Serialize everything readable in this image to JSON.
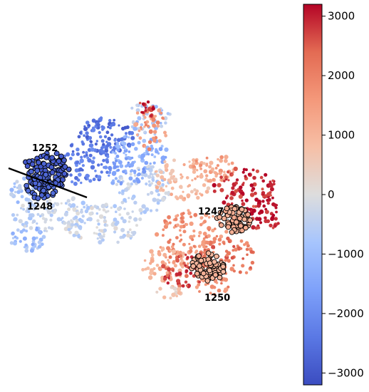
{
  "chart_data": {
    "type": "scatter",
    "title": "",
    "xlabel": "",
    "ylabel": "",
    "axes_visible": false,
    "colormap": "coolwarm",
    "colorbar": {
      "location": "right",
      "vmin": -3200,
      "vmax": 3200,
      "ticks": [
        3000,
        2000,
        1000,
        0,
        -1000,
        -2000,
        -3000
      ],
      "tick_labels": [
        "3000",
        "2000",
        "1000",
        "0",
        "−1000",
        "−2000",
        "−3000"
      ]
    },
    "highlighted_clusters": [
      {
        "id": "1252",
        "value": -2900
      },
      {
        "id": "1248",
        "value": -2700
      },
      {
        "id": "1247",
        "value": 1100
      },
      {
        "id": "1250",
        "value": 1000
      }
    ],
    "colors": {
      "min": "#3b4cc0",
      "mid": "#dddddd",
      "max": "#b40426",
      "outline": "#000000"
    }
  }
}
